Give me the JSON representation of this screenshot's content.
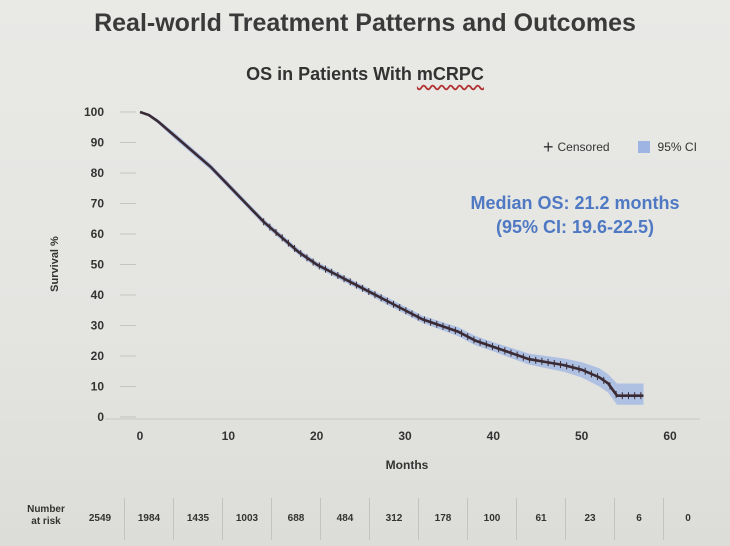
{
  "slide_title": "Real-world Treatment Patterns and Outcomes",
  "chart_title": {
    "prefix": "OS in Patients With ",
    "abbr": "mCRPC"
  },
  "legend": {
    "censored": "Censored",
    "ci": "95% CI",
    "censored_symbol": "+"
  },
  "median": {
    "line1": "Median OS: 21.2 months",
    "line2": "(95% CI: 19.6-22.5)"
  },
  "risk_table": {
    "label_line1": "Number",
    "label_line2": "at risk",
    "values": [
      "2549",
      "1984",
      "1435",
      "1003",
      "688",
      "484",
      "312",
      "178",
      "100",
      "61",
      "23",
      "6",
      "0"
    ]
  },
  "colors": {
    "curve": "#3a2a33",
    "ci_band": "#9eb5e4",
    "annotation": "#4f79c3"
  },
  "chart_data": {
    "type": "line",
    "title": "OS in Patients With mCRPC",
    "xlabel": "Months",
    "ylabel": "Survival %",
    "xlim": [
      0,
      60
    ],
    "ylim": [
      0,
      100
    ],
    "xticks": [
      0,
      10,
      20,
      30,
      40,
      50,
      60
    ],
    "yticks": [
      0,
      10,
      20,
      30,
      40,
      50,
      60,
      70,
      80,
      90,
      100
    ],
    "ytick_labels": [
      "0",
      "10",
      "20",
      "30",
      "40",
      "50",
      "60",
      "70",
      "80",
      "90",
      "100"
    ],
    "grid": false,
    "legend_position": "top-right",
    "series": [
      {
        "x": [
          0,
          1,
          2,
          4,
          6,
          8,
          10,
          12,
          14,
          16,
          18,
          20,
          22,
          24,
          26,
          28,
          30,
          32,
          34,
          36,
          38,
          40,
          42,
          44,
          46,
          48,
          50,
          52,
          53,
          54,
          56,
          57
        ],
        "y": [
          100,
          99,
          97,
          92,
          87,
          82,
          76,
          70,
          64,
          59,
          54,
          50,
          47,
          44,
          41,
          38,
          35,
          32,
          30,
          28,
          25,
          23,
          21,
          19,
          18,
          17,
          15.5,
          13,
          11,
          7,
          7,
          7
        ],
        "ci_lower": [
          100,
          98.5,
          96.3,
          91,
          86,
          81,
          75,
          69,
          63,
          58,
          53,
          49,
          46,
          43,
          40,
          36.8,
          33.8,
          30.8,
          28.7,
          26.5,
          23.5,
          21.5,
          19.3,
          17.2,
          16,
          14.8,
          13,
          10,
          8,
          4,
          4,
          4
        ],
        "ci_upper": [
          100,
          99.5,
          97.7,
          93,
          88,
          83,
          77,
          71,
          65,
          60,
          55,
          51,
          48,
          45,
          42,
          39.2,
          36.2,
          33.2,
          31.3,
          29.5,
          26.5,
          24.5,
          22.7,
          20.8,
          20,
          19.2,
          18,
          16,
          14,
          11,
          11,
          11
        ]
      }
    ]
  }
}
